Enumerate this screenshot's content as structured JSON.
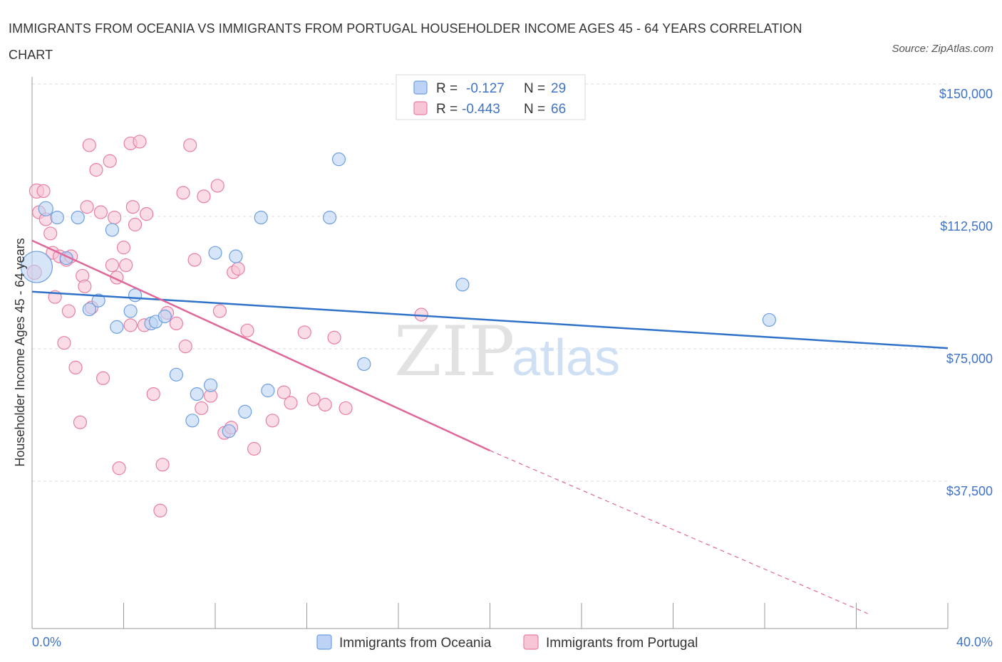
{
  "title": "IMMIGRANTS FROM OCEANIA VS IMMIGRANTS FROM PORTUGAL HOUSEHOLDER INCOME AGES 45 - 64 YEARS CORRELATION CHART",
  "source": "Source: ZipAtlas.com",
  "watermark": {
    "zip": "ZIP",
    "atlas": "atlas"
  },
  "colors": {
    "oceania": "#6d9fe0",
    "oceania_fill": "#bcd3f5",
    "portugal": "#e87ea3",
    "portugal_fill": "#f7c5d6",
    "oceania_line": "#2f72c9",
    "portugal_line": "#e0679a",
    "tick": "#3f73c6"
  },
  "legend": {
    "rows": [
      {
        "r_label": "R =",
        "r_value": "-0.127",
        "n_label": "N =",
        "n_value": "29"
      },
      {
        "r_label": "R =",
        "r_value": "-0.443",
        "n_label": "N =",
        "n_value": "66"
      }
    ]
  },
  "chart_data": {
    "type": "scatter",
    "title": "IMMIGRANTS FROM OCEANIA VS IMMIGRANTS FROM PORTUGAL HOUSEHOLDER INCOME AGES 45 - 64 YEARS CORRELATION CHART",
    "xlabel": "",
    "ylabel": "Householder Income Ages 45 - 64 years",
    "xlim": [
      0,
      40
    ],
    "ylim": [
      0,
      150000
    ],
    "x_tick_labels": [
      "0.0%",
      "40.0%"
    ],
    "y_ticks": [
      {
        "value": 150000,
        "label": "$150,000"
      },
      {
        "value": 112500,
        "label": "$112,500"
      },
      {
        "value": 75000,
        "label": "$75,000"
      },
      {
        "value": 37500,
        "label": "$37,500"
      }
    ],
    "grid": true,
    "legend_position": "top-center",
    "series": [
      {
        "name": "Immigrants from Oceania",
        "trend": {
          "x0": 0,
          "y0": 94000,
          "x1": 40,
          "y1": 78000
        },
        "points": [
          [
            0.2,
            101000,
            22
          ],
          [
            0.6,
            117500,
            10
          ],
          [
            1.1,
            115000,
            9
          ],
          [
            1.5,
            103500,
            9
          ],
          [
            2.0,
            115000,
            9
          ],
          [
            2.9,
            91500,
            9
          ],
          [
            2.5,
            89000,
            9
          ],
          [
            3.5,
            111500,
            9
          ],
          [
            3.7,
            84000,
            9
          ],
          [
            4.3,
            88500,
            9
          ],
          [
            4.5,
            93000,
            9
          ],
          [
            5.2,
            85000,
            9
          ],
          [
            5.4,
            85500,
            9
          ],
          [
            5.8,
            87000,
            9
          ],
          [
            6.3,
            70500,
            9
          ],
          [
            7.0,
            57500,
            9
          ],
          [
            7.2,
            65000,
            9
          ],
          [
            7.8,
            67500,
            9
          ],
          [
            8.0,
            105000,
            9
          ],
          [
            8.9,
            104000,
            9
          ],
          [
            8.6,
            54500,
            9
          ],
          [
            9.3,
            60000,
            9
          ],
          [
            10.0,
            115000,
            9
          ],
          [
            10.3,
            66000,
            9
          ],
          [
            13.4,
            131500,
            9
          ],
          [
            13.0,
            115000,
            9
          ],
          [
            14.5,
            73500,
            9
          ],
          [
            18.8,
            96000,
            9
          ],
          [
            32.2,
            86000,
            9
          ]
        ]
      },
      {
        "name": "Immigrants from Portugal",
        "trend": {
          "x0": 0,
          "y0": 108500,
          "x1": 20,
          "y1": 49000,
          "dash_x1": 36.5,
          "dash_y1": 0
        },
        "points": [
          [
            0.1,
            99500,
            10
          ],
          [
            0.2,
            122500,
            10
          ],
          [
            0.5,
            122500,
            9
          ],
          [
            0.3,
            116500,
            9
          ],
          [
            0.6,
            114500,
            9
          ],
          [
            0.8,
            110500,
            9
          ],
          [
            0.9,
            105000,
            9
          ],
          [
            1.0,
            92500,
            9
          ],
          [
            1.2,
            104000,
            9
          ],
          [
            1.5,
            103000,
            9
          ],
          [
            1.7,
            104000,
            9
          ],
          [
            1.6,
            88500,
            9
          ],
          [
            1.4,
            79500,
            9
          ],
          [
            1.9,
            72500,
            9
          ],
          [
            2.1,
            57000,
            9
          ],
          [
            2.2,
            98500,
            9
          ],
          [
            2.3,
            95500,
            9
          ],
          [
            2.4,
            118000,
            9
          ],
          [
            2.5,
            135500,
            9
          ],
          [
            2.8,
            128500,
            9
          ],
          [
            3.0,
            116500,
            9
          ],
          [
            3.1,
            69500,
            9
          ],
          [
            3.4,
            131000,
            9
          ],
          [
            3.5,
            101500,
            9
          ],
          [
            3.6,
            115000,
            9
          ],
          [
            3.7,
            98000,
            9
          ],
          [
            3.8,
            44000,
            9
          ],
          [
            4.0,
            106500,
            9
          ],
          [
            4.1,
            101500,
            9
          ],
          [
            4.3,
            136000,
            9
          ],
          [
            4.4,
            118000,
            9
          ],
          [
            4.5,
            113000,
            9
          ],
          [
            4.7,
            136500,
            9
          ],
          [
            4.9,
            84500,
            9
          ],
          [
            5.0,
            116000,
            9
          ],
          [
            5.3,
            65000,
            9
          ],
          [
            5.6,
            32000,
            9
          ],
          [
            5.7,
            45000,
            9
          ],
          [
            5.9,
            88000,
            9
          ],
          [
            6.3,
            85000,
            9
          ],
          [
            6.6,
            122000,
            9
          ],
          [
            6.7,
            78500,
            9
          ],
          [
            6.9,
            135500,
            9
          ],
          [
            7.1,
            103000,
            9
          ],
          [
            7.4,
            61000,
            9
          ],
          [
            7.5,
            121000,
            9
          ],
          [
            7.8,
            64500,
            9
          ],
          [
            8.1,
            124000,
            9
          ],
          [
            8.2,
            88500,
            9
          ],
          [
            8.4,
            54000,
            9
          ],
          [
            8.7,
            55500,
            9
          ],
          [
            8.8,
            99500,
            9
          ],
          [
            9.0,
            100500,
            9
          ],
          [
            9.4,
            83000,
            9
          ],
          [
            9.7,
            49500,
            9
          ],
          [
            10.5,
            57500,
            9
          ],
          [
            11.0,
            65500,
            9
          ],
          [
            11.3,
            62500,
            9
          ],
          [
            11.9,
            82500,
            9
          ],
          [
            12.3,
            63500,
            9
          ],
          [
            12.8,
            62000,
            9
          ],
          [
            13.2,
            81000,
            9
          ],
          [
            13.7,
            61000,
            9
          ],
          [
            17.0,
            87500,
            9
          ],
          [
            4.3,
            84500,
            9
          ],
          [
            2.6,
            89500,
            9
          ]
        ]
      }
    ]
  }
}
